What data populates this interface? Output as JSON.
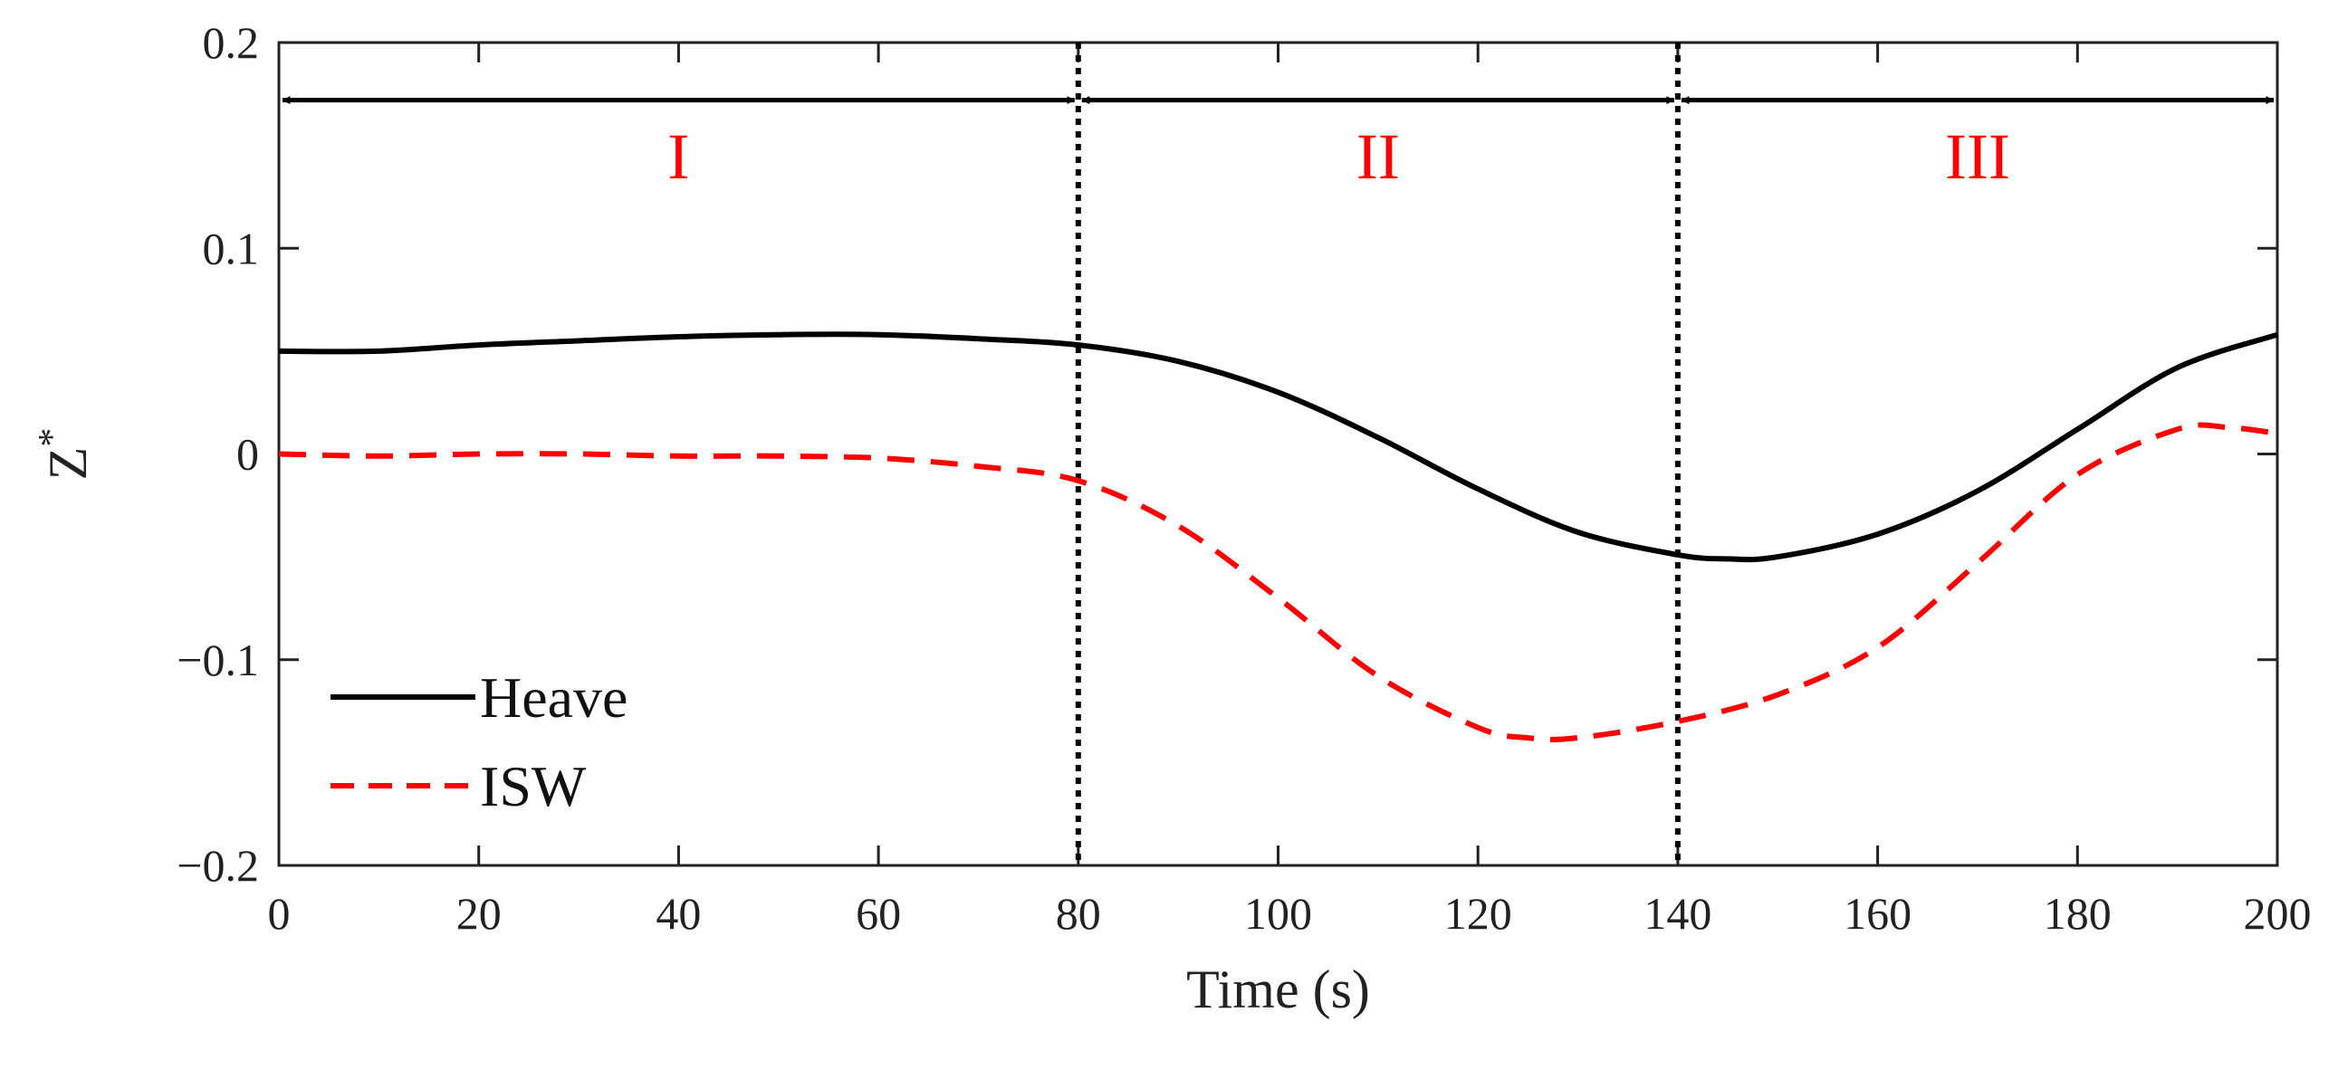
{
  "chart_data": {
    "type": "line",
    "title": "",
    "xlabel": "Time (s)",
    "ylabel_main": "Z",
    "ylabel_sup": "*",
    "xlim": [
      0,
      200
    ],
    "ylim": [
      -0.2,
      0.2
    ],
    "xticks": [
      0,
      20,
      40,
      60,
      80,
      100,
      120,
      140,
      160,
      180,
      200
    ],
    "xtick_labels": [
      "0",
      "20",
      "40",
      "60",
      "80",
      "100",
      "120",
      "140",
      "160",
      "180",
      "200"
    ],
    "yticks": [
      0.2,
      0.1,
      0,
      -0.1,
      -0.2
    ],
    "ytick_labels": [
      "0.2",
      "0.1",
      "0",
      "−0.1",
      "−0.2"
    ],
    "grid": false,
    "legend_position": "bottom-left",
    "series": [
      {
        "name": "Heave",
        "style": "solid",
        "color": "#000000",
        "x": [
          0,
          10,
          20,
          30,
          40,
          50,
          60,
          70,
          80,
          90,
          100,
          110,
          120,
          130,
          140,
          145,
          150,
          160,
          170,
          180,
          190,
          200
        ],
        "values": [
          0.05,
          0.05,
          0.053,
          0.055,
          0.057,
          0.058,
          0.058,
          0.056,
          0.053,
          0.045,
          0.03,
          0.008,
          -0.017,
          -0.038,
          -0.049,
          -0.051,
          -0.05,
          -0.039,
          -0.018,
          0.012,
          0.042,
          0.058
        ]
      },
      {
        "name": "ISW",
        "style": "dashed",
        "color": "#ff0000",
        "x": [
          0,
          10,
          20,
          30,
          40,
          50,
          60,
          70,
          80,
          90,
          100,
          110,
          120,
          125,
          130,
          140,
          150,
          160,
          170,
          180,
          190,
          195,
          200
        ],
        "values": [
          0.0,
          -0.001,
          0.0,
          0.0,
          -0.001,
          -0.001,
          -0.002,
          -0.006,
          -0.013,
          -0.035,
          -0.07,
          -0.108,
          -0.133,
          -0.138,
          -0.138,
          -0.13,
          -0.117,
          -0.094,
          -0.053,
          -0.01,
          0.012,
          0.013,
          0.01
        ]
      }
    ],
    "vertical_markers": [
      80,
      140
    ],
    "regions": [
      {
        "label": "I",
        "start": 0,
        "end": 80
      },
      {
        "label": "II",
        "start": 80,
        "end": 140
      },
      {
        "label": "III",
        "start": 140,
        "end": 200
      }
    ],
    "region_arrow_y": 0.172,
    "region_label_y": 0.145,
    "region_label_color": "#ff0000"
  }
}
